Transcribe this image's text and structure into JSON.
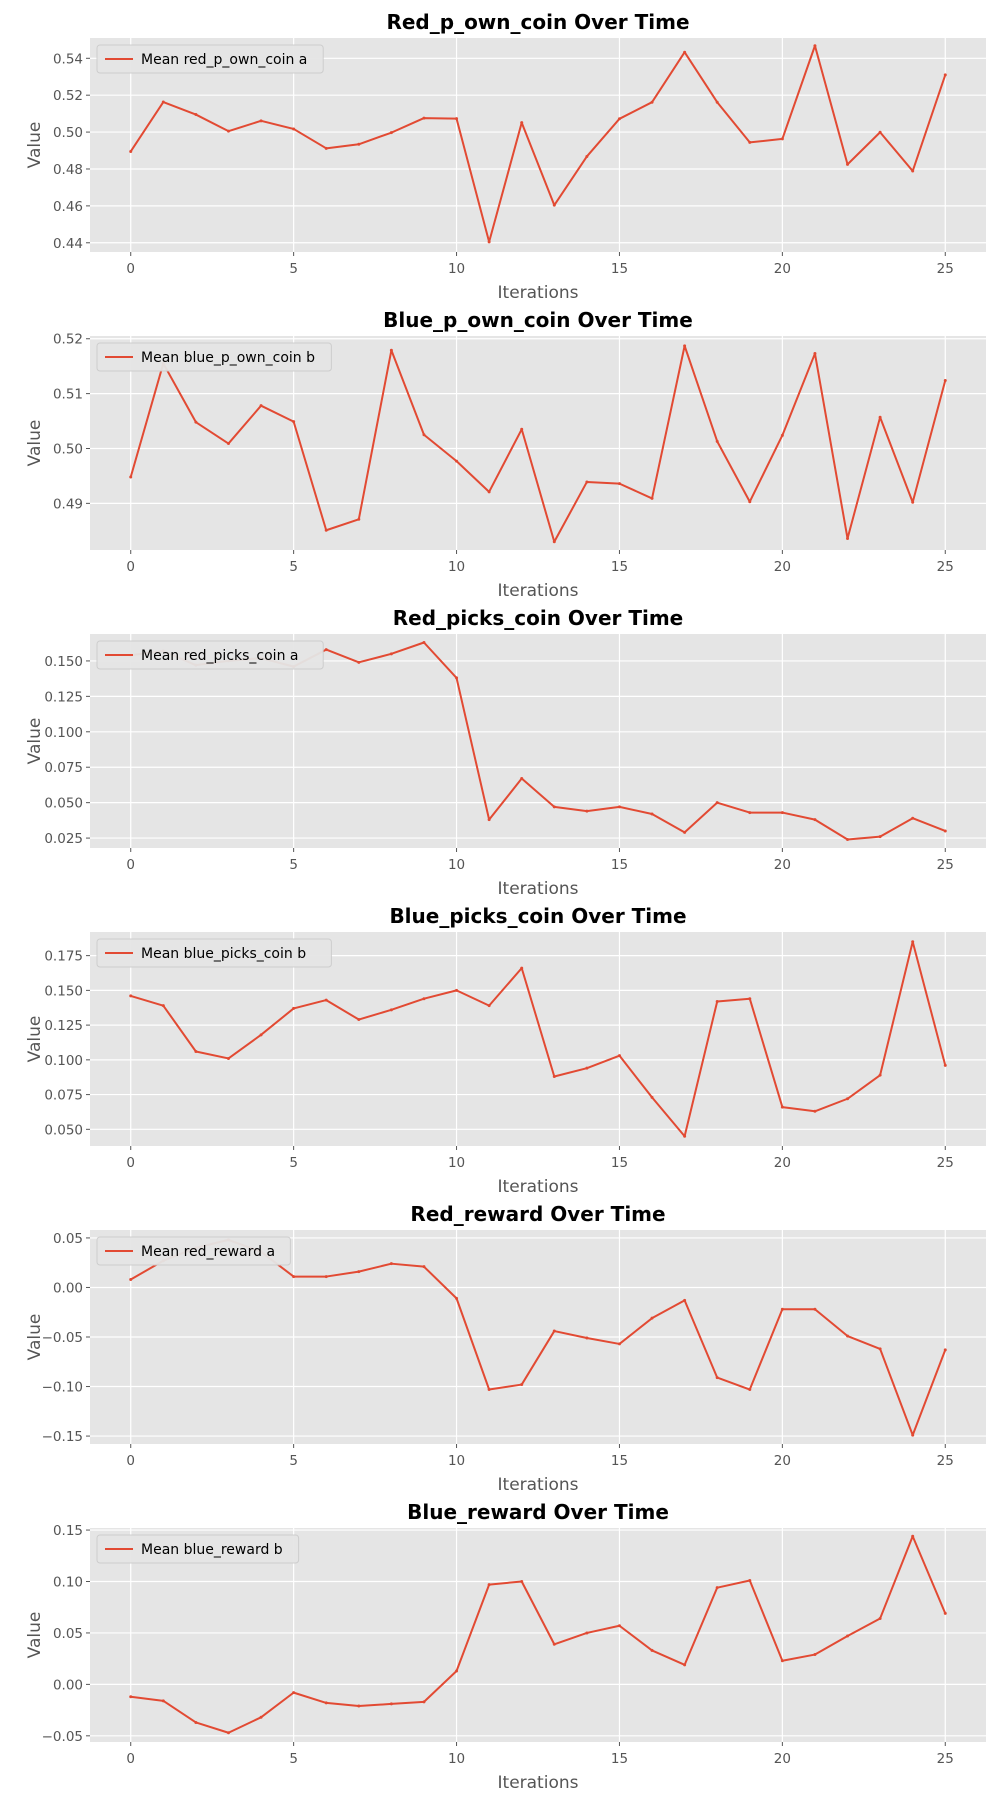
{
  "chart_data": [
    {
      "type": "line",
      "title": "Red_p_own_coin Over Time",
      "xlabel": "Iterations",
      "ylabel": "Value",
      "xlim": [
        -1.25,
        26.25
      ],
      "ylim": [
        0.435,
        0.551
      ],
      "xticks": [
        0,
        5,
        10,
        15,
        20,
        25
      ],
      "yticks": [
        "0.44",
        "0.46",
        "0.48",
        "0.50",
        "0.52",
        "0.54"
      ],
      "grid": true,
      "legend_position": "top-left",
      "x": [
        0,
        1,
        2,
        3,
        4,
        5,
        6,
        7,
        8,
        9,
        10,
        11,
        12,
        13,
        14,
        15,
        16,
        17,
        18,
        19,
        20,
        21,
        22,
        23,
        24,
        25
      ],
      "series": [
        {
          "name": "Mean red_p_own_coin a",
          "color": "#E24A33",
          "values": [
            0.4895,
            0.5163,
            0.5095,
            0.5005,
            0.5061,
            0.5017,
            0.4912,
            0.4934,
            0.4997,
            0.5076,
            0.5073,
            0.4405,
            0.5051,
            0.4604,
            0.4868,
            0.5072,
            0.5162,
            0.5433,
            0.5162,
            0.4944,
            0.4963,
            0.5468,
            0.4825,
            0.4999,
            0.4789,
            0.531
          ]
        }
      ]
    },
    {
      "type": "line",
      "title": "Blue_p_own_coin Over Time",
      "xlabel": "Iterations",
      "ylabel": "Value",
      "xlim": [
        -1.25,
        26.25
      ],
      "ylim": [
        0.4815,
        0.5205
      ],
      "xticks": [
        0,
        5,
        10,
        15,
        20,
        25
      ],
      "yticks": [
        "0.49",
        "0.50",
        "0.51",
        "0.52"
      ],
      "grid": true,
      "legend_position": "top-left",
      "x": [
        0,
        1,
        2,
        3,
        4,
        5,
        6,
        7,
        8,
        9,
        10,
        11,
        12,
        13,
        14,
        15,
        16,
        17,
        18,
        19,
        20,
        21,
        22,
        23,
        24,
        25
      ],
      "series": [
        {
          "name": "Mean blue_p_own_coin b",
          "color": "#E24A33",
          "values": [
            0.4948,
            0.5155,
            0.5048,
            0.5009,
            0.5078,
            0.5049,
            0.4851,
            0.4871,
            0.5179,
            0.5025,
            0.4977,
            0.4921,
            0.5035,
            0.483,
            0.4939,
            0.4936,
            0.4909,
            0.5187,
            0.5013,
            0.4903,
            0.5024,
            0.5173,
            0.4836,
            0.5057,
            0.4902,
            0.5124
          ]
        }
      ]
    },
    {
      "type": "line",
      "title": "Red_picks_coin Over Time",
      "xlabel": "Iterations",
      "ylabel": "Value",
      "xlim": [
        -1.25,
        26.25
      ],
      "ylim": [
        0.018,
        0.169
      ],
      "xticks": [
        0,
        5,
        10,
        15,
        20,
        25
      ],
      "yticks": [
        "0.025",
        "0.050",
        "0.075",
        "0.100",
        "0.125",
        "0.150"
      ],
      "grid": true,
      "legend_position": "top-left",
      "x": [
        0,
        1,
        2,
        3,
        4,
        5,
        6,
        7,
        8,
        9,
        10,
        11,
        12,
        13,
        14,
        15,
        16,
        17,
        18,
        19,
        20,
        21,
        22,
        23,
        24,
        25
      ],
      "series": [
        {
          "name": "Mean red_picks_coin a",
          "color": "#E24A33",
          "values": [
            0.154,
            0.157,
            0.147,
            0.15,
            0.152,
            0.146,
            0.158,
            0.149,
            0.155,
            0.163,
            0.138,
            0.038,
            0.067,
            0.047,
            0.044,
            0.047,
            0.042,
            0.029,
            0.05,
            0.043,
            0.043,
            0.038,
            0.024,
            0.026,
            0.039,
            0.03
          ]
        }
      ]
    },
    {
      "type": "line",
      "title": "Blue_picks_coin Over Time",
      "xlabel": "Iterations",
      "ylabel": "Value",
      "xlim": [
        -1.25,
        26.25
      ],
      "ylim": [
        0.038,
        0.192
      ],
      "xticks": [
        0,
        5,
        10,
        15,
        20,
        25
      ],
      "yticks": [
        "0.050",
        "0.075",
        "0.100",
        "0.125",
        "0.150",
        "0.175"
      ],
      "grid": true,
      "legend_position": "top-left",
      "x": [
        0,
        1,
        2,
        3,
        4,
        5,
        6,
        7,
        8,
        9,
        10,
        11,
        12,
        13,
        14,
        15,
        16,
        17,
        18,
        19,
        20,
        21,
        22,
        23,
        24,
        25
      ],
      "series": [
        {
          "name": "Mean blue_picks_coin b",
          "color": "#E24A33",
          "values": [
            0.146,
            0.139,
            0.106,
            0.101,
            0.118,
            0.137,
            0.143,
            0.129,
            0.136,
            0.144,
            0.15,
            0.139,
            0.166,
            0.088,
            0.094,
            0.103,
            0.073,
            0.045,
            0.142,
            0.144,
            0.066,
            0.063,
            0.072,
            0.089,
            0.185,
            0.096
          ]
        }
      ]
    },
    {
      "type": "line",
      "title": "Red_reward Over Time",
      "xlabel": "Iterations",
      "ylabel": "Value",
      "xlim": [
        -1.25,
        26.25
      ],
      "ylim": [
        -0.158,
        0.058
      ],
      "xticks": [
        0,
        5,
        10,
        15,
        20,
        25
      ],
      "yticks": [
        "−0.15",
        "−0.10",
        "−0.05",
        "0.00",
        "0.05"
      ],
      "grid": true,
      "legend_position": "top-left",
      "x": [
        0,
        1,
        2,
        3,
        4,
        5,
        6,
        7,
        8,
        9,
        10,
        11,
        12,
        13,
        14,
        15,
        16,
        17,
        18,
        19,
        20,
        21,
        22,
        23,
        24,
        25
      ],
      "series": [
        {
          "name": "Mean red_reward a",
          "color": "#E24A33",
          "values": [
            0.008,
            0.027,
            0.04,
            0.048,
            0.036,
            0.011,
            0.011,
            0.016,
            0.024,
            0.021,
            -0.011,
            -0.103,
            -0.098,
            -0.044,
            -0.051,
            -0.057,
            -0.031,
            -0.013,
            -0.091,
            -0.103,
            -0.022,
            -0.022,
            -0.049,
            -0.062,
            -0.149,
            -0.063
          ]
        }
      ]
    },
    {
      "type": "line",
      "title": "Blue_reward Over Time",
      "xlabel": "Iterations",
      "ylabel": "Value",
      "xlim": [
        -1.25,
        26.25
      ],
      "ylim": [
        -0.056,
        0.152
      ],
      "xticks": [
        0,
        5,
        10,
        15,
        20,
        25
      ],
      "yticks": [
        "−0.05",
        "0.00",
        "0.05",
        "0.10",
        "0.15"
      ],
      "grid": true,
      "legend_position": "top-left",
      "x": [
        0,
        1,
        2,
        3,
        4,
        5,
        6,
        7,
        8,
        9,
        10,
        11,
        12,
        13,
        14,
        15,
        16,
        17,
        18,
        19,
        20,
        21,
        22,
        23,
        24,
        25
      ],
      "series": [
        {
          "name": "Mean blue_reward b",
          "color": "#E24A33",
          "values": [
            -0.012,
            -0.016,
            -0.037,
            -0.047,
            -0.032,
            -0.008,
            -0.018,
            -0.021,
            -0.019,
            -0.017,
            0.013,
            0.097,
            0.1,
            0.039,
            0.05,
            0.057,
            0.033,
            0.019,
            0.094,
            0.101,
            0.023,
            0.029,
            0.047,
            0.064,
            0.144,
            0.069
          ]
        }
      ]
    }
  ]
}
